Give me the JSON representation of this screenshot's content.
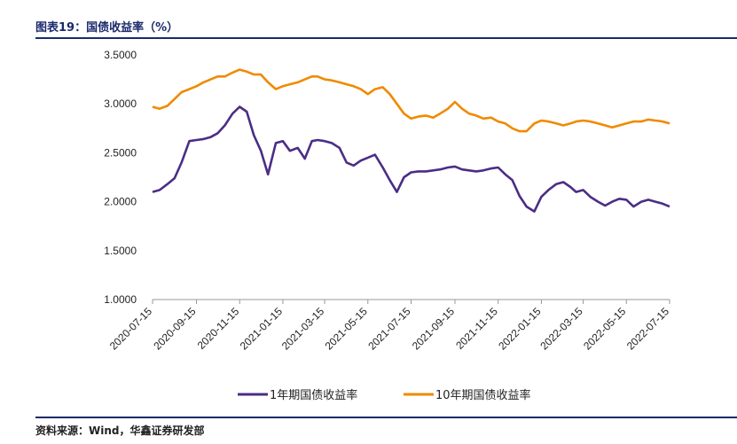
{
  "figure": {
    "title": "图表19：国债收益率（%）",
    "source": "资料来源：Wind，华鑫证券研发部"
  },
  "colors": {
    "series_1y": "#4b2d86",
    "series_10y": "#f08a00",
    "axis": "#999999",
    "title": "#1b2a6b"
  },
  "chart_data": {
    "type": "line",
    "title": "国债收益率（%）",
    "xlabel": "",
    "ylabel": "",
    "ylim": [
      1.0,
      3.5
    ],
    "yticks": [
      "1.0000",
      "1.5000",
      "2.0000",
      "2.5000",
      "3.0000",
      "3.5000"
    ],
    "xticks": [
      "2020-07-15",
      "2020-09-15",
      "2020-11-15",
      "2021-01-15",
      "2021-03-15",
      "2021-05-15",
      "2021-07-15",
      "2021-09-15",
      "2021-11-15",
      "2022-01-15",
      "2022-03-15",
      "2022-05-15",
      "2022-07-15"
    ],
    "grid": false,
    "legend": "bottom",
    "x": [
      "2020-07-15",
      "2020-07-25",
      "2020-08-05",
      "2020-08-15",
      "2020-08-25",
      "2020-09-05",
      "2020-09-15",
      "2020-09-25",
      "2020-10-05",
      "2020-10-15",
      "2020-10-25",
      "2020-11-05",
      "2020-11-15",
      "2020-11-25",
      "2020-12-05",
      "2020-12-15",
      "2020-12-25",
      "2021-01-05",
      "2021-01-15",
      "2021-01-25",
      "2021-02-05",
      "2021-02-15",
      "2021-02-25",
      "2021-03-05",
      "2021-03-15",
      "2021-03-25",
      "2021-04-05",
      "2021-04-15",
      "2021-04-25",
      "2021-05-05",
      "2021-05-15",
      "2021-05-25",
      "2021-06-05",
      "2021-06-15",
      "2021-06-25",
      "2021-07-05",
      "2021-07-15",
      "2021-07-25",
      "2021-08-05",
      "2021-08-15",
      "2021-08-25",
      "2021-09-05",
      "2021-09-15",
      "2021-09-25",
      "2021-10-05",
      "2021-10-15",
      "2021-10-25",
      "2021-11-05",
      "2021-11-15",
      "2021-11-25",
      "2021-12-05",
      "2021-12-15",
      "2021-12-25",
      "2022-01-05",
      "2022-01-15",
      "2022-01-25",
      "2022-02-05",
      "2022-02-15",
      "2022-02-25",
      "2022-03-05",
      "2022-03-15",
      "2022-03-25",
      "2022-04-05",
      "2022-04-15",
      "2022-04-25",
      "2022-05-05",
      "2022-05-15",
      "2022-05-25",
      "2022-06-05",
      "2022-06-15",
      "2022-06-25",
      "2022-07-05",
      "2022-07-15"
    ],
    "series": [
      {
        "name": "1年期国债收益率",
        "values": [
          2.1,
          2.12,
          2.18,
          2.24,
          2.4,
          2.62,
          2.63,
          2.64,
          2.66,
          2.7,
          2.78,
          2.9,
          2.97,
          2.92,
          2.68,
          2.52,
          2.28,
          2.6,
          2.62,
          2.52,
          2.55,
          2.44,
          2.62,
          2.63,
          2.62,
          2.6,
          2.55,
          2.4,
          2.37,
          2.42,
          2.45,
          2.48,
          2.35,
          2.22,
          2.1,
          2.25,
          2.3,
          2.31,
          2.31,
          2.32,
          2.33,
          2.35,
          2.36,
          2.33,
          2.32,
          2.31,
          2.32,
          2.34,
          2.35,
          2.28,
          2.22,
          2.06,
          1.95,
          1.9,
          2.05,
          2.12,
          2.18,
          2.2,
          2.15,
          2.1,
          2.12,
          2.05,
          2.0,
          1.96,
          2.0,
          2.03,
          2.02,
          1.95,
          2.0,
          2.02,
          2.0,
          1.98,
          1.95
        ]
      },
      {
        "name": "10年期国债收益率",
        "values": [
          2.97,
          2.95,
          2.98,
          3.05,
          3.12,
          3.15,
          3.18,
          3.22,
          3.25,
          3.28,
          3.28,
          3.32,
          3.35,
          3.33,
          3.3,
          3.3,
          3.22,
          3.15,
          3.18,
          3.2,
          3.22,
          3.25,
          3.28,
          3.28,
          3.25,
          3.24,
          3.22,
          3.2,
          3.18,
          3.15,
          3.1,
          3.15,
          3.17,
          3.1,
          3.0,
          2.9,
          2.85,
          2.87,
          2.88,
          2.86,
          2.9,
          2.95,
          3.02,
          2.95,
          2.9,
          2.88,
          2.85,
          2.86,
          2.82,
          2.8,
          2.75,
          2.72,
          2.72,
          2.8,
          2.83,
          2.82,
          2.8,
          2.78,
          2.8,
          2.82,
          2.83,
          2.82,
          2.8,
          2.78,
          2.76,
          2.78,
          2.8,
          2.82,
          2.82,
          2.84,
          2.83,
          2.82,
          2.8
        ]
      }
    ]
  }
}
